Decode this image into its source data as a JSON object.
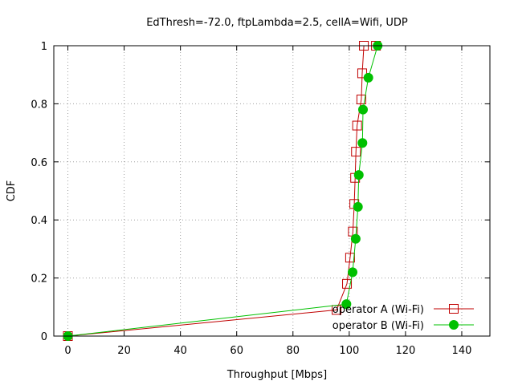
{
  "chart_data": {
    "type": "line",
    "title": "EdThresh=-72.0, ftpLambda=2.5, cellA=Wifi, UDP",
    "xlabel": "Throughput [Mbps]",
    "ylabel": "CDF",
    "xlim": [
      -5,
      150
    ],
    "ylim": [
      0,
      1
    ],
    "x_ticks": [
      "0",
      "20",
      "40",
      "60",
      "80",
      "100",
      "120",
      "140"
    ],
    "y_ticks": [
      "0",
      "0.2",
      "0.4",
      "0.6",
      "0.8",
      "1"
    ],
    "grid": true,
    "legend_position": "bottom-right",
    "series": [
      {
        "name": "operator A (Wi-Fi)",
        "color": "#c00000",
        "marker": "open-square",
        "x": [
          0,
          95.5,
          99.2,
          100.3,
          101.3,
          101.8,
          102.1,
          102.4,
          102.8,
          104.3,
          104.6,
          105.2,
          109.5
        ],
        "y": [
          0,
          0.09,
          0.18,
          0.27,
          0.36,
          0.455,
          0.545,
          0.635,
          0.725,
          0.815,
          0.905,
          1.0,
          1.0
        ]
      },
      {
        "name": "operator B (Wi-Fi)",
        "color": "#00c000",
        "marker": "filled-circle",
        "x": [
          0,
          99.0,
          101.2,
          102.3,
          103.1,
          103.4,
          104.7,
          104.9,
          106.8,
          110.1
        ],
        "y": [
          0,
          0.11,
          0.22,
          0.335,
          0.445,
          0.555,
          0.665,
          0.78,
          0.89,
          1.0
        ]
      }
    ]
  }
}
